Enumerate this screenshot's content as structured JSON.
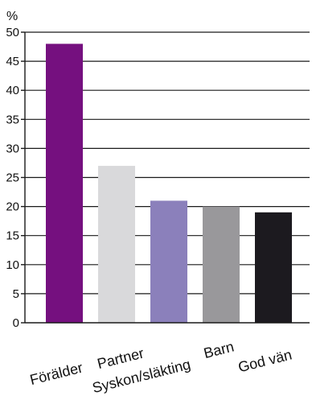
{
  "chart_data": {
    "type": "bar",
    "title": "",
    "xlabel": "",
    "ylabel": "%",
    "ylim": [
      0,
      50
    ],
    "yticks": [
      0,
      5,
      10,
      15,
      20,
      25,
      30,
      35,
      40,
      45,
      50
    ],
    "grid": true,
    "categories": [
      "Förälder",
      "Partner",
      "Syskon/släkting",
      "Barn",
      "God vän"
    ],
    "values": [
      48,
      27,
      21,
      20,
      19
    ],
    "colors": [
      "#75107f",
      "#d9d9db",
      "#8b80bb",
      "#99989b",
      "#1c1a1f"
    ]
  }
}
